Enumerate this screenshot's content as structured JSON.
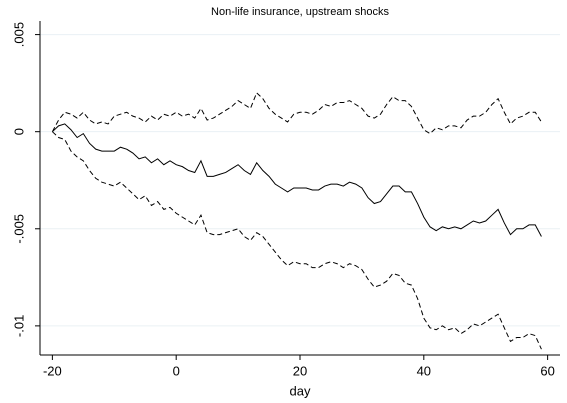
{
  "chart_data": {
    "type": "line",
    "title": "Non-life insurance, upstream shocks",
    "xlabel": "day",
    "x": [
      -20,
      -19,
      -18,
      -17,
      -16,
      -15,
      -14,
      -13,
      -12,
      -11,
      -10,
      -9,
      -8,
      -7,
      -6,
      -5,
      -4,
      -3,
      -2,
      -1,
      0,
      1,
      2,
      3,
      4,
      5,
      6,
      7,
      8,
      9,
      10,
      11,
      12,
      13,
      14,
      15,
      16,
      17,
      18,
      19,
      20,
      21,
      22,
      23,
      24,
      25,
      26,
      27,
      28,
      29,
      30,
      31,
      32,
      33,
      34,
      35,
      36,
      37,
      38,
      39,
      40,
      41,
      42,
      43,
      44,
      45,
      46,
      47,
      48,
      49,
      50,
      51,
      52,
      53,
      54,
      55,
      56,
      57,
      58,
      59
    ],
    "series": [
      {
        "color": "#000000",
        "style": "dashed",
        "values": [
          0,
          0.0006,
          0.001,
          0.0009,
          0.0007,
          0.001,
          0.0006,
          0.0004,
          0.0005,
          0.0004,
          0.0008,
          0.0009,
          0.001,
          0.0008,
          0.0007,
          0.0005,
          0.0008,
          0.0006,
          0.0009,
          0.0008,
          0.001,
          0.0008,
          0.0009,
          0.0007,
          0.0012,
          0.0006,
          0.0007,
          0.0009,
          0.0011,
          0.0013,
          0.0016,
          0.0014,
          0.0012,
          0.002,
          0.0017,
          0.0012,
          0.0009,
          0.0007,
          0.0005,
          0.0009,
          0.001,
          0.001,
          0.0009,
          0.0011,
          0.0014,
          0.0013,
          0.0015,
          0.0015,
          0.0016,
          0.0014,
          0.0012,
          0.0008,
          0.0007,
          0.0009,
          0.0014,
          0.0018,
          0.0016,
          0.0016,
          0.0013,
          0.0007,
          0.0001,
          -0.0001,
          0.0002,
          0.0001,
          0.0003,
          0.0003,
          0.0002,
          0.0006,
          0.0008,
          0.0008,
          0.001,
          0.0014,
          0.0017,
          0.001,
          0.0004,
          0.0007,
          0.0008,
          0.001,
          0.001,
          0.0005
        ]
      },
      {
        "color": "#000000",
        "style": "solid",
        "values": [
          0,
          0.0003,
          0.0004,
          0.0001,
          -0.0003,
          -0.0001,
          -0.0006,
          -0.0009,
          -0.001,
          -0.001,
          -0.001,
          -0.0008,
          -0.0009,
          -0.0011,
          -0.0014,
          -0.0013,
          -0.0016,
          -0.0014,
          -0.0017,
          -0.0015,
          -0.0017,
          -0.0018,
          -0.002,
          -0.0021,
          -0.0015,
          -0.0023,
          -0.0023,
          -0.0022,
          -0.0021,
          -0.0019,
          -0.0017,
          -0.002,
          -0.0022,
          -0.0016,
          -0.002,
          -0.0023,
          -0.0027,
          -0.0029,
          -0.0031,
          -0.0029,
          -0.0029,
          -0.0029,
          -0.003,
          -0.003,
          -0.0028,
          -0.0027,
          -0.0027,
          -0.0028,
          -0.0026,
          -0.0027,
          -0.0029,
          -0.0034,
          -0.0037,
          -0.0036,
          -0.0032,
          -0.0028,
          -0.0028,
          -0.0031,
          -0.0031,
          -0.0037,
          -0.0044,
          -0.0049,
          -0.0051,
          -0.0049,
          -0.005,
          -0.0049,
          -0.005,
          -0.0048,
          -0.0046,
          -0.0047,
          -0.0046,
          -0.0043,
          -0.004,
          -0.0047,
          -0.0053,
          -0.005,
          -0.005,
          -0.0048,
          -0.0048,
          -0.0054
        ]
      },
      {
        "color": "#000000",
        "style": "dashed",
        "values": [
          0,
          -0.0003,
          -0.0004,
          -0.001,
          -0.0013,
          -0.0015,
          -0.002,
          -0.0024,
          -0.0026,
          -0.0027,
          -0.0028,
          -0.0026,
          -0.0029,
          -0.0032,
          -0.0035,
          -0.0033,
          -0.0038,
          -0.0036,
          -0.004,
          -0.0039,
          -0.0042,
          -0.0044,
          -0.0046,
          -0.0048,
          -0.0043,
          -0.0052,
          -0.0053,
          -0.0053,
          -0.0052,
          -0.0051,
          -0.005,
          -0.0054,
          -0.0056,
          -0.0052,
          -0.0054,
          -0.0058,
          -0.0062,
          -0.0066,
          -0.0069,
          -0.0067,
          -0.0068,
          -0.0068,
          -0.007,
          -0.007,
          -0.0068,
          -0.0067,
          -0.0068,
          -0.007,
          -0.0068,
          -0.0069,
          -0.0071,
          -0.0076,
          -0.008,
          -0.0079,
          -0.0077,
          -0.0073,
          -0.0074,
          -0.0078,
          -0.0079,
          -0.0086,
          -0.0096,
          -0.0101,
          -0.0102,
          -0.01,
          -0.0102,
          -0.0101,
          -0.0104,
          -0.0102,
          -0.0099,
          -0.01,
          -0.0098,
          -0.0096,
          -0.0094,
          -0.0101,
          -0.0108,
          -0.0106,
          -0.0106,
          -0.0104,
          -0.0105,
          -0.0112
        ]
      }
    ],
    "xlim": [
      -22,
      62
    ],
    "xticks": [
      -20,
      0,
      20,
      40,
      60
    ],
    "ylim": [
      -0.0115,
      0.0057
    ],
    "yticks": [
      {
        "value": 0.005,
        "label": ".005"
      },
      0,
      {
        "value": -0.005,
        "label": "-.005"
      },
      {
        "value": -0.01,
        "label": "-.01"
      }
    ],
    "grid": true
  }
}
